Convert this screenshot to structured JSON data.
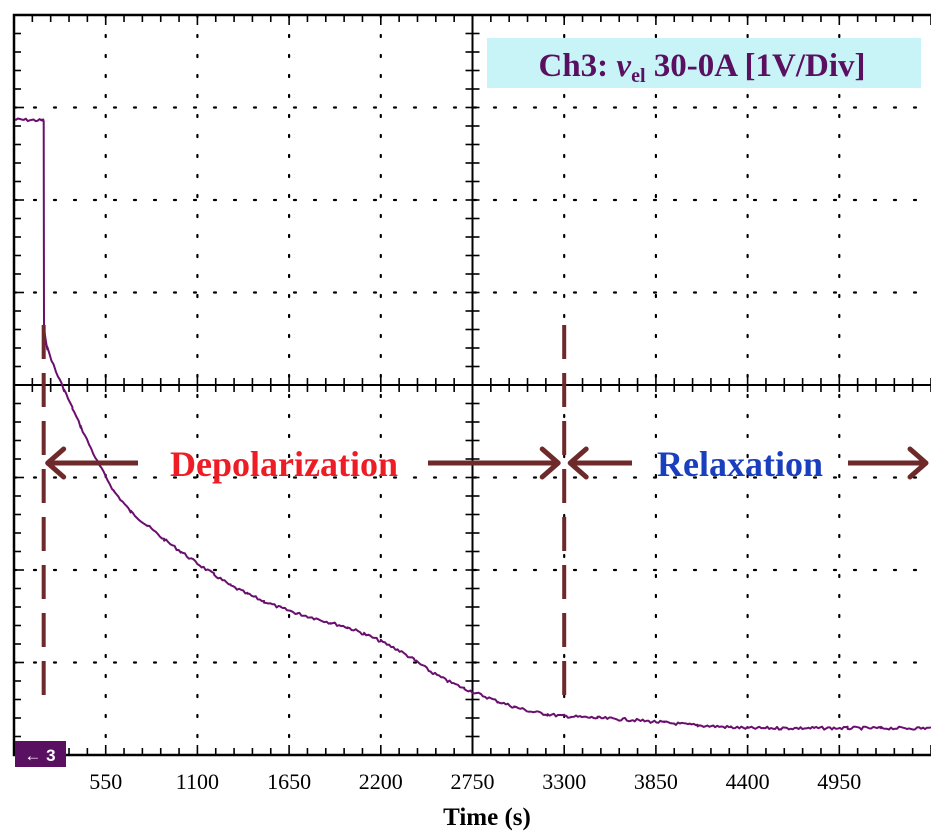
{
  "chart_data": {
    "type": "line",
    "title": "",
    "xlabel": "Time (s)",
    "ylabel": "",
    "xlim": [
      0,
      5500
    ],
    "x_ticks": [
      "550",
      "1100",
      "1650",
      "2200",
      "2750",
      "3300",
      "3850",
      "4400",
      "4950"
    ],
    "x_tick_values": [
      550,
      1100,
      1650,
      2200,
      2750,
      3300,
      3850,
      4400,
      4950
    ],
    "y_divisions": 8,
    "grid": true,
    "grid_style": "dotted",
    "channel": {
      "prefix": "Ch3: ",
      "symbol": "v",
      "subscript": "el",
      "suffix": " 30-0A [1V/Div]",
      "background": "#c8f4f8",
      "color": "#5a1060"
    },
    "ground_marker": {
      "label": "← 3",
      "color": "#5a1060"
    },
    "series": [
      {
        "color": "#6a0f6e",
        "x": [
          0,
          165,
          175,
          178,
          180,
          200,
          250,
          300,
          350,
          400,
          500,
          600,
          700,
          800,
          900,
          1000,
          1100,
          1200,
          1300,
          1400,
          1500,
          1600,
          1700,
          1800,
          1900,
          2000,
          2100,
          2200,
          2300,
          2400,
          2500,
          2600,
          2700,
          2800,
          2900,
          3000,
          3100,
          3200,
          3300,
          3500,
          3700,
          3900,
          4100,
          4300,
          4400,
          4600,
          4800,
          5000,
          5200,
          5500
        ],
        "y": [
          2.87,
          2.86,
          2.86,
          2.85,
          0.6,
          0.4,
          0.15,
          -0.05,
          -0.25,
          -0.45,
          -0.83,
          -1.15,
          -1.37,
          -1.52,
          -1.67,
          -1.8,
          -1.93,
          -2.05,
          -2.17,
          -2.26,
          -2.34,
          -2.41,
          -2.47,
          -2.52,
          -2.57,
          -2.62,
          -2.69,
          -2.77,
          -2.86,
          -2.97,
          -3.1,
          -3.2,
          -3.28,
          -3.35,
          -3.42,
          -3.48,
          -3.53,
          -3.56,
          -3.58,
          -3.6,
          -3.62,
          -3.65,
          -3.68,
          -3.7,
          -3.71,
          -3.71,
          -3.71,
          -3.71,
          -3.71,
          -3.71
        ]
      }
    ],
    "phase_markers": [
      {
        "x": 178,
        "label": "Depolarization",
        "color": "#ee1c24"
      },
      {
        "x": 3300,
        "label": "Relaxation",
        "color": "#1a3fbe"
      }
    ],
    "marker_color": "#6e2a2a"
  }
}
